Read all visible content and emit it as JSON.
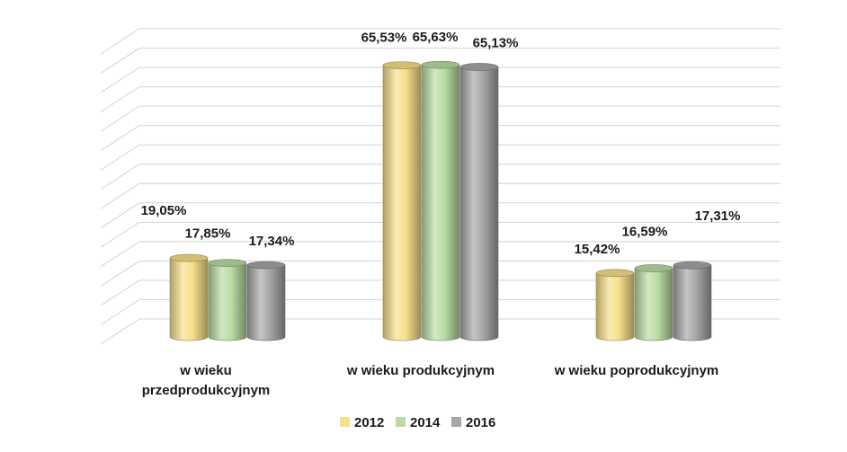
{
  "chart_data": {
    "type": "bar",
    "style": "3d-cylinder",
    "categories": [
      "w wieku przedprodukcyjnym",
      "w wieku produkcyjnym",
      "w wieku poprodukcyjnym"
    ],
    "series": [
      {
        "name": "2012",
        "color": "#f7e08a",
        "values": [
          19.05,
          65.53,
          15.42
        ],
        "labels": [
          "19,05%",
          "65,53%",
          "15,42%"
        ]
      },
      {
        "name": "2014",
        "color": "#b9dca4",
        "values": [
          17.85,
          65.63,
          16.59
        ],
        "labels": [
          "17,85%",
          "65,63%",
          "16,59%"
        ]
      },
      {
        "name": "2016",
        "color": "#a6a6a6",
        "values": [
          17.34,
          65.13,
          17.31
        ],
        "labels": [
          "17,34%",
          "65,13%",
          "17,31%"
        ]
      }
    ],
    "ylim": [
      0,
      70
    ],
    "grid": true,
    "legend": "bottom"
  }
}
